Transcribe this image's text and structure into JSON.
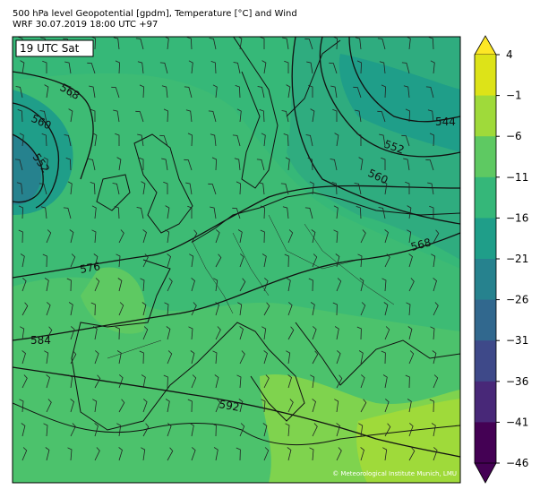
{
  "header": {
    "title": "500 hPa level Geopotential [gpdm], Temperature [°C] and Wind",
    "subtitle": "WRF 30.07.2019 18:00 UTC +97"
  },
  "time_label": "19 UTC Sat",
  "contour_labels": [
    "568",
    "560",
    "552",
    "576",
    "584",
    "592",
    "544",
    "552",
    "560",
    "568"
  ],
  "colorbar": {
    "ticks": [
      "4",
      "−1",
      "−6",
      "−11",
      "−16",
      "−21",
      "−26",
      "−31",
      "−36",
      "−41",
      "−46"
    ],
    "colors": [
      "#fde725",
      "#dde318",
      "#9fda3a",
      "#5ec962",
      "#35b779",
      "#1f9e89",
      "#26828e",
      "#31688e",
      "#3e4989",
      "#482878",
      "#440154",
      "#440154"
    ]
  },
  "copyright": "© Meteorological Institute Munich, LMU"
}
